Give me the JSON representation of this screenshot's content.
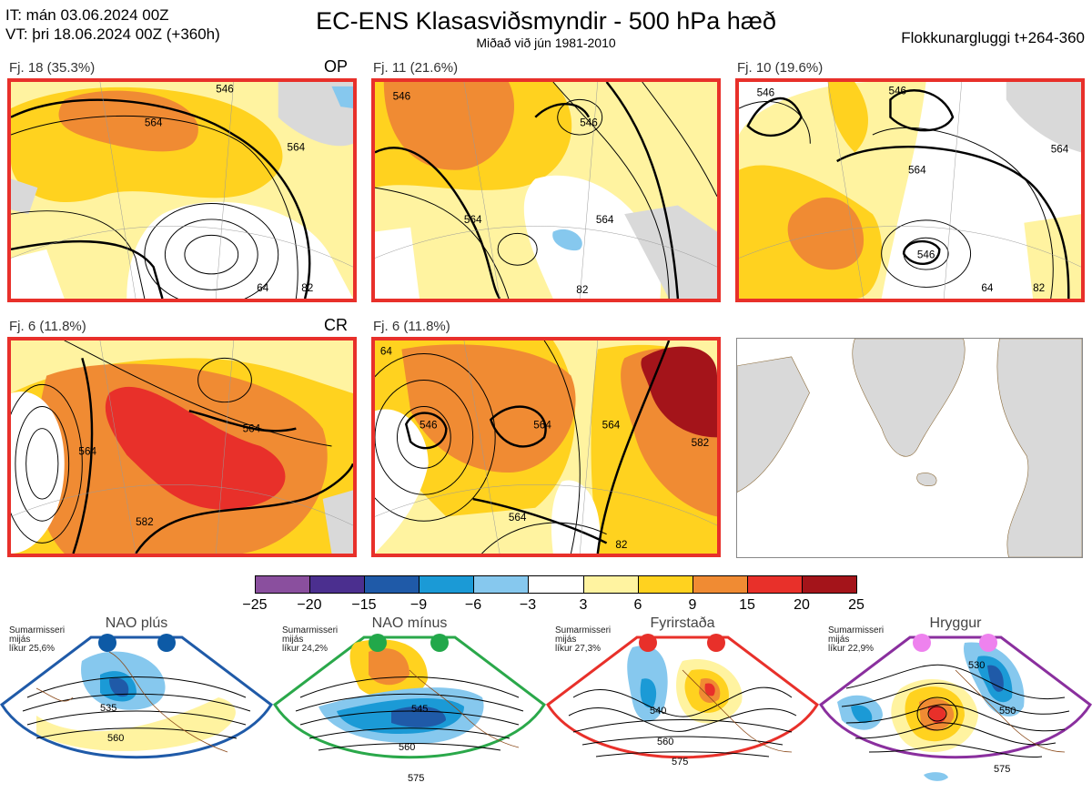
{
  "header": {
    "it_line": "IT: mán 03.06.2024 00Z",
    "vt_line": "VT: þri 18.06.2024 00Z  (+360h)",
    "title": "EC-ENS Klasasviðsmyndir - 500 hPa hæð",
    "subtitle": "Miðað við jún 1981-2010",
    "window": "Flokkunargluggi t+264-360"
  },
  "panels": [
    {
      "label": "Fj. 18 (35.3%)",
      "tag": "OP",
      "contours": [
        "546",
        "564",
        "564",
        "64",
        "82"
      ]
    },
    {
      "label": "Fj. 11 (21.6%)",
      "tag": "",
      "contours": [
        "546",
        "546",
        "564",
        "564",
        "82"
      ]
    },
    {
      "label": "Fj. 10 (19.6%)",
      "tag": "",
      "contours": [
        "546",
        "546",
        "564",
        "564",
        "546",
        "64",
        "82"
      ]
    },
    {
      "label": "Fj. 6 (11.8%)",
      "tag": "CR",
      "contours": [
        "564",
        "564",
        "582"
      ]
    },
    {
      "label": "Fj. 6 (11.8%)",
      "tag": "",
      "contours": [
        "64",
        "546",
        "564",
        "564",
        "564",
        "582",
        "82"
      ]
    }
  ],
  "colorbar": {
    "ticks": [
      "−25",
      "−20",
      "−15",
      "−9",
      "−6",
      "−3",
      "3",
      "6",
      "9",
      "15",
      "20",
      "25"
    ],
    "colors": [
      "#8a4f9e",
      "#4b2f8f",
      "#1f5aa8",
      "#1b9ad6",
      "#86c8ee",
      "#ffffff",
      "#fff3a0",
      "#ffd21f",
      "#f08b33",
      "#e8302a",
      "#a4141a"
    ]
  },
  "regimes": [
    {
      "title": "NAO plús",
      "note": [
        "Sumarmisseri",
        "mijás",
        "líkur 25,6%"
      ],
      "contours": [
        "535",
        "560"
      ],
      "color": "#1f5aa8",
      "dot_color": "#0d5aa6"
    },
    {
      "title": "NAO mínus",
      "note": [
        "Sumarmisseri",
        "mijás",
        "líkur 24,2%"
      ],
      "contours": [
        "545",
        "560",
        "575"
      ],
      "color": "#2aa84a",
      "dot_color": "#22a84a"
    },
    {
      "title": "Fyrirstaða",
      "note": [
        "Sumarmisseri",
        "mijás",
        "líkur 27,3%"
      ],
      "contours": [
        "540",
        "560",
        "575"
      ],
      "color": "#e8302a",
      "dot_color": "#e8302a"
    },
    {
      "title": "Hryggur",
      "note": [
        "Sumarmisseri",
        "mijás",
        "líkur 22,9%"
      ],
      "contours": [
        "530",
        "550",
        "575"
      ],
      "color": "#8a2f9e",
      "dot_color": "#ee82ee"
    }
  ],
  "chart_data": {
    "type": "heatmap",
    "title": "EC-ENS Klasasviðsmyndir - 500 hPa hæð",
    "subtitle": "Miðað við jún 1981-2010",
    "legend_bins": [
      -25,
      -20,
      -15,
      -9,
      -6,
      -3,
      3,
      6,
      9,
      15,
      20,
      25
    ],
    "clusters": [
      {
        "name": "Fj. 18",
        "probability_pct": 35.3,
        "tag": "OP"
      },
      {
        "name": "Fj. 11",
        "probability_pct": 21.6
      },
      {
        "name": "Fj. 10",
        "probability_pct": 19.6
      },
      {
        "name": "Fj. 6",
        "probability_pct": 11.8,
        "tag": "CR"
      },
      {
        "name": "Fj. 6",
        "probability_pct": 11.8
      }
    ],
    "regimes": [
      {
        "name": "NAO plús",
        "probability_pct": 25.6
      },
      {
        "name": "NAO mínus",
        "probability_pct": 24.2
      },
      {
        "name": "Fyrirstaða",
        "probability_pct": 27.3
      },
      {
        "name": "Hryggur",
        "probability_pct": 22.9
      }
    ]
  }
}
